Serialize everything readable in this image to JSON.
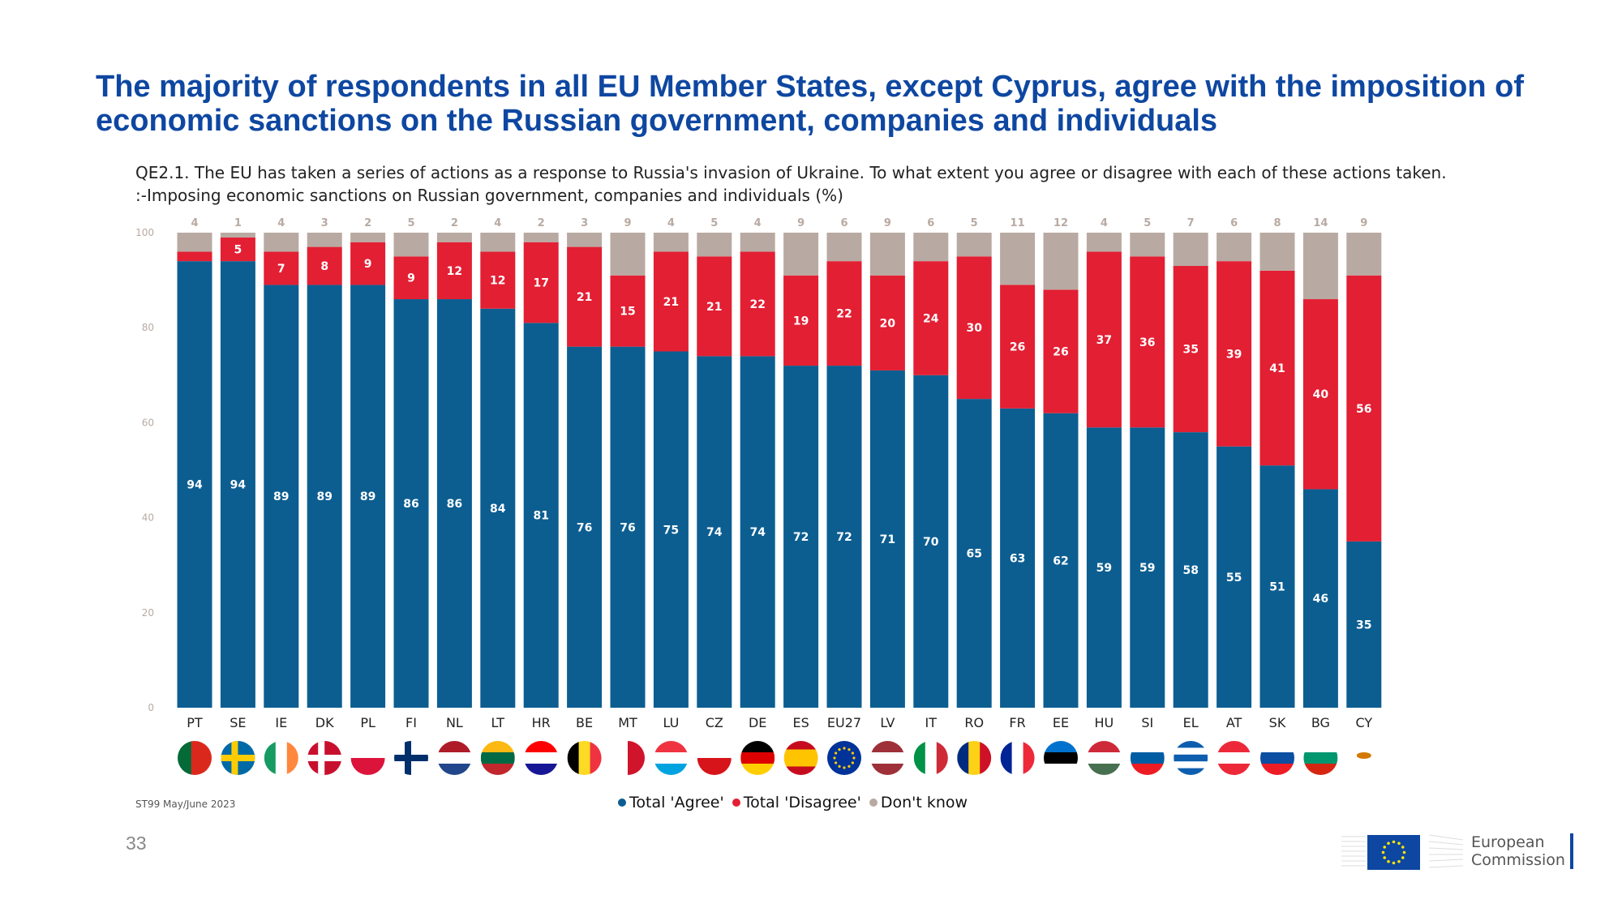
{
  "title": "The majority of respondents in all EU Member States, except Cyprus, agree with the imposition of economic sanctions on the Russian government, companies and individuals",
  "question_line1": "QE2.1. The EU has taken a series of actions as a response to Russia's invasion of Ukraine. To what extent you agree or disagree with each of these actions taken.",
  "question_line2": ":-Imposing economic sanctions on Russian government, companies and individuals (%)",
  "source": "ST99 May/June 2023",
  "page_number": "33",
  "logo": {
    "line1": "European",
    "line2": "Commission"
  },
  "legend": [
    {
      "label": "Total 'Agree'",
      "color": "#0c5e91"
    },
    {
      "label": "Total 'Disagree'",
      "color": "#e31f33"
    },
    {
      "label": "Don't know",
      "color": "#b8aaa2"
    }
  ],
  "chart_data": {
    "type": "bar",
    "stacked": true,
    "ylim": [
      0,
      100
    ],
    "yticks": [
      0,
      20,
      40,
      60,
      80,
      100
    ],
    "categories": [
      "PT",
      "SE",
      "IE",
      "DK",
      "PL",
      "FI",
      "NL",
      "LT",
      "HR",
      "BE",
      "MT",
      "LU",
      "CZ",
      "DE",
      "ES",
      "EU27",
      "LV",
      "IT",
      "RO",
      "FR",
      "EE",
      "HU",
      "SI",
      "EL",
      "AT",
      "SK",
      "BG",
      "CY"
    ],
    "series": [
      {
        "name": "Total 'Agree'",
        "color": "#0c5e91",
        "values": [
          94,
          94,
          89,
          89,
          89,
          86,
          86,
          84,
          81,
          76,
          76,
          75,
          74,
          74,
          72,
          72,
          71,
          70,
          65,
          63,
          62,
          59,
          59,
          58,
          55,
          51,
          46,
          35
        ]
      },
      {
        "name": "Total 'Disagree'",
        "color": "#e31f33",
        "values": [
          2,
          5,
          7,
          8,
          9,
          9,
          12,
          12,
          17,
          21,
          15,
          21,
          21,
          22,
          19,
          22,
          20,
          24,
          30,
          26,
          26,
          37,
          36,
          35,
          39,
          41,
          40,
          56
        ]
      },
      {
        "name": "Don't know",
        "color": "#b8aaa2",
        "values": [
          4,
          1,
          4,
          3,
          2,
          5,
          2,
          4,
          2,
          3,
          9,
          4,
          5,
          4,
          9,
          6,
          9,
          6,
          5,
          11,
          12,
          4,
          5,
          7,
          6,
          8,
          14,
          9
        ]
      }
    ]
  },
  "flags": [
    {
      "o": "v",
      "c": [
        "#046a38",
        "#046a38",
        "#da291c",
        "#da291c",
        "#da291c"
      ]
    },
    {
      "o": "nordic",
      "c": [
        "#006aa7",
        "#fecc00"
      ]
    },
    {
      "o": "v",
      "c": [
        "#169b62",
        "#ffffff",
        "#ff883e"
      ]
    },
    {
      "o": "nordic",
      "c": [
        "#c8102e",
        "#ffffff"
      ]
    },
    {
      "o": "h",
      "c": [
        "#ffffff",
        "#dc143c"
      ]
    },
    {
      "o": "nordic",
      "c": [
        "#ffffff",
        "#002f6c"
      ]
    },
    {
      "o": "h",
      "c": [
        "#ae1c28",
        "#ffffff",
        "#21468b"
      ]
    },
    {
      "o": "h",
      "c": [
        "#fdb913",
        "#006a44",
        "#c1272d"
      ]
    },
    {
      "o": "h",
      "c": [
        "#ff0000",
        "#ffffff",
        "#171796"
      ]
    },
    {
      "o": "v",
      "c": [
        "#000000",
        "#fdda24",
        "#ef3340"
      ]
    },
    {
      "o": "v",
      "c": [
        "#ffffff",
        "#cf142b"
      ]
    },
    {
      "o": "h",
      "c": [
        "#ef3340",
        "#ffffff",
        "#00a3e0"
      ]
    },
    {
      "o": "h",
      "c": [
        "#ffffff",
        "#d7141a"
      ]
    },
    {
      "o": "h",
      "c": [
        "#000000",
        "#dd0000",
        "#ffce00"
      ]
    },
    {
      "o": "h",
      "c": [
        "#c60b1e",
        "#ffc400",
        "#ffc400",
        "#c60b1e"
      ]
    },
    {
      "o": "eu",
      "c": [
        "#003399",
        "#ffcc00"
      ]
    },
    {
      "o": "h",
      "c": [
        "#9e3039",
        "#ffffff",
        "#9e3039"
      ]
    },
    {
      "o": "v",
      "c": [
        "#009246",
        "#ffffff",
        "#ce2b37"
      ]
    },
    {
      "o": "v",
      "c": [
        "#002b7f",
        "#fcd116",
        "#ce1126"
      ]
    },
    {
      "o": "v",
      "c": [
        "#002395",
        "#ffffff",
        "#ed2939"
      ]
    },
    {
      "o": "h",
      "c": [
        "#0072ce",
        "#000000",
        "#ffffff"
      ]
    },
    {
      "o": "h",
      "c": [
        "#ce2939",
        "#ffffff",
        "#477050"
      ]
    },
    {
      "o": "h",
      "c": [
        "#ffffff",
        "#005da4",
        "#ed1c24"
      ]
    },
    {
      "o": "h",
      "c": [
        "#0d5eaf",
        "#ffffff",
        "#0d5eaf",
        "#ffffff",
        "#0d5eaf"
      ]
    },
    {
      "o": "h",
      "c": [
        "#ed2939",
        "#ffffff",
        "#ed2939"
      ]
    },
    {
      "o": "h",
      "c": [
        "#ffffff",
        "#0b4ea2",
        "#ee1c25"
      ]
    },
    {
      "o": "h",
      "c": [
        "#ffffff",
        "#00966e",
        "#d62612"
      ]
    },
    {
      "o": "h",
      "c": [
        "#ffffff"
      ]
    }
  ]
}
